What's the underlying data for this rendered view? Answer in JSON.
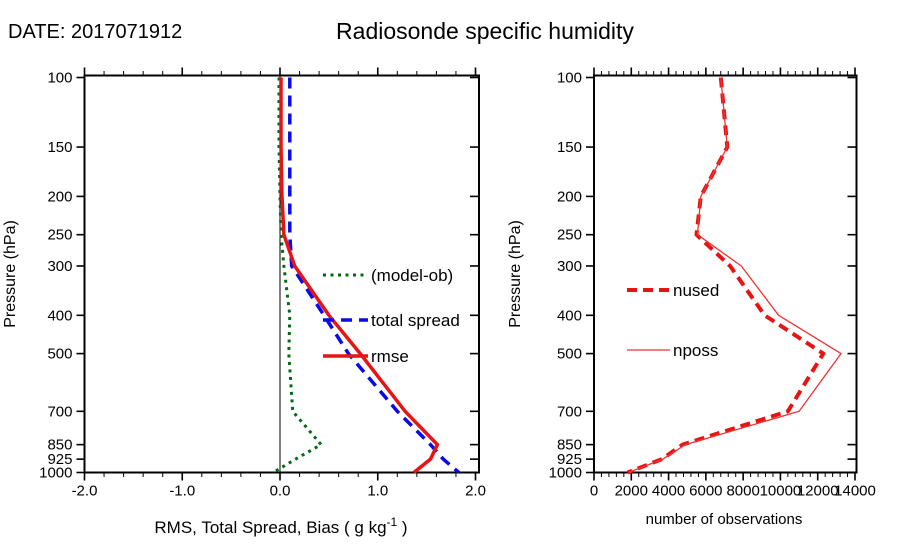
{
  "page": {
    "date_label": "DATE: 2017071912",
    "title": "Radiosonde specific humidity",
    "background": "#ffffff"
  },
  "colors": {
    "bias_green": "#066a14",
    "spread_blue": "#0a0ae6",
    "rmse_red": "#e61414",
    "nused_red": "#e61414",
    "nposs_red": "#ee3333",
    "axis_black": "#000000"
  },
  "pressure_levels": [
    100,
    150,
    200,
    250,
    300,
    400,
    500,
    700,
    850,
    925,
    1000
  ],
  "chart_data": [
    {
      "id": "verification-panel",
      "type": "line",
      "x_axis": {
        "label_prefix": "RMS, Total Spread, Bias ( g kg",
        "label_sup": "-1",
        "label_suffix": " )",
        "min": -2.0,
        "max": 2.0,
        "major_step": 1.0,
        "minor_step": 0.2,
        "major_ticks": [
          -2.0,
          -1.0,
          0.0,
          1.0,
          2.0
        ],
        "tick_labels": [
          "-2.0",
          "-1.0",
          "0.0",
          "1.0",
          "2.0"
        ]
      },
      "y_axis": {
        "label": "Pressure (hPa)",
        "scale": "log",
        "min": 100,
        "max": 1000,
        "ticks": [
          100,
          150,
          200,
          250,
          300,
          400,
          500,
          700,
          850,
          925,
          1000
        ]
      },
      "zero_line": true,
      "series": [
        {
          "name": "(model-ob)",
          "key": "bias",
          "style": "dotted",
          "color_key": "bias_green",
          "values": [
            -0.01,
            -0.01,
            0.0,
            0.01,
            0.04,
            0.1,
            0.09,
            0.13,
            0.42,
            0.16,
            -0.07
          ]
        },
        {
          "name": "total spread",
          "key": "spread",
          "style": "dashed",
          "color_key": "spread_blue",
          "values": [
            0.1,
            0.1,
            0.1,
            0.1,
            0.12,
            0.45,
            0.7,
            1.2,
            1.54,
            1.67,
            1.83
          ]
        },
        {
          "name": "rmse",
          "key": "rmse",
          "style": "solid",
          "color_key": "rmse_red",
          "values": [
            0.01,
            0.01,
            0.02,
            0.04,
            0.15,
            0.5,
            0.82,
            1.28,
            1.61,
            1.54,
            1.37
          ]
        }
      ],
      "legend": [
        {
          "series_key": "bias",
          "label": "(model-ob)"
        },
        {
          "series_key": "spread",
          "label": "total spread"
        },
        {
          "series_key": "rmse",
          "label": "rmse"
        }
      ]
    },
    {
      "id": "obs-count-panel",
      "type": "line",
      "x_axis": {
        "label": "number of observations",
        "min": 0,
        "max": 14000,
        "major_step": 2000,
        "minor_step": 400,
        "major_ticks": [
          0,
          2000,
          4000,
          6000,
          8000,
          10000,
          12000,
          14000
        ],
        "tick_labels": [
          "0",
          "2000",
          "4000",
          "6000",
          "8000",
          "10000",
          "12000",
          "14000"
        ]
      },
      "y_axis": {
        "label": "Pressure (hPa)",
        "scale": "log",
        "min": 100,
        "max": 1000,
        "ticks": [
          100,
          150,
          200,
          250,
          300,
          400,
          500,
          700,
          850,
          925,
          1000
        ]
      },
      "zero_line": false,
      "series": [
        {
          "name": "nused",
          "key": "nused",
          "style": "thick-dashed",
          "color_key": "nused_red",
          "values": [
            6800,
            7150,
            5730,
            5500,
            7300,
            9150,
            12300,
            10400,
            4750,
            3650,
            1800
          ]
        },
        {
          "name": "nposs",
          "key": "nposs",
          "style": "thin-solid",
          "color_key": "nposs_red",
          "values": [
            6800,
            7150,
            5730,
            5550,
            7900,
            9900,
            13250,
            11000,
            4900,
            3700,
            1850
          ]
        }
      ],
      "legend": [
        {
          "series_key": "nused",
          "label": "nused"
        },
        {
          "series_key": "nposs",
          "label": "nposs"
        }
      ]
    }
  ]
}
